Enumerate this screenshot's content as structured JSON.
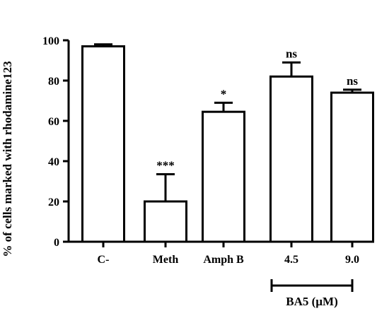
{
  "chart_data": {
    "type": "bar",
    "title": "",
    "xlabel": "",
    "ylabel": "% of cells marked with rhodamine123",
    "ylim": [
      0,
      100
    ],
    "yticks": [
      0,
      20,
      40,
      60,
      80,
      100
    ],
    "categories": [
      "C-",
      "Meth",
      "Amph B",
      "4.5",
      "9.0"
    ],
    "values": [
      97,
      20,
      64.5,
      82,
      74
    ],
    "errors": [
      1,
      13.5,
      4.5,
      7,
      1.5
    ],
    "significance": [
      "",
      "***",
      "*",
      "ns",
      "ns"
    ],
    "bracket": {
      "label": "BA5 (µM)",
      "categories": [
        "4.5",
        "9.0"
      ]
    },
    "grid": false,
    "legend": "none",
    "colors": {
      "bar_fill": "#ffffff",
      "stroke": "#000000"
    }
  }
}
